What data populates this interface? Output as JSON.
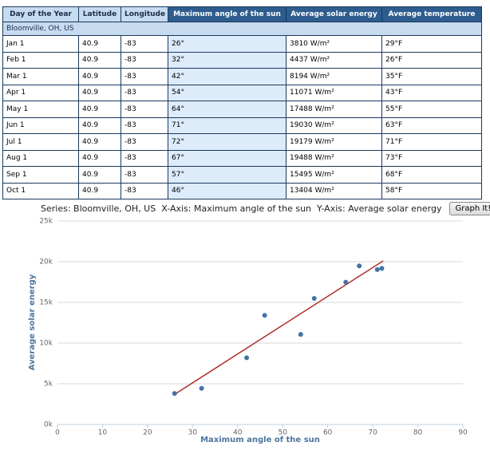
{
  "table": {
    "columns": [
      "Day of the Year",
      "Latitude",
      "Longitude",
      "Maximum angle of the sun",
      "Average solar energy",
      "Average temperature"
    ],
    "group": "Bloomville, OH, US",
    "rows": [
      [
        "Jan 1",
        "40.9",
        "-83",
        "26°",
        "3810 W/m²",
        "29°F"
      ],
      [
        "Feb 1",
        "40.9",
        "-83",
        "32°",
        "4437 W/m²",
        "26°F"
      ],
      [
        "Mar 1",
        "40.9",
        "-83",
        "42°",
        "8194 W/m²",
        "35°F"
      ],
      [
        "Apr 1",
        "40.9",
        "-83",
        "54°",
        "11071 W/m²",
        "43°F"
      ],
      [
        "May 1",
        "40.9",
        "-83",
        "64°",
        "17488 W/m²",
        "55°F"
      ],
      [
        "Jun 1",
        "40.9",
        "-83",
        "71°",
        "19030 W/m²",
        "63°F"
      ],
      [
        "Jul 1",
        "40.9",
        "-83",
        "72°",
        "19179 W/m²",
        "71°F"
      ],
      [
        "Aug 1",
        "40.9",
        "-83",
        "67°",
        "19488 W/m²",
        "73°F"
      ],
      [
        "Sep 1",
        "40.9",
        "-83",
        "57°",
        "15495 W/m²",
        "68°F"
      ],
      [
        "Oct 1",
        "40.9",
        "-83",
        "46°",
        "13404 W/m²",
        "58°F"
      ]
    ]
  },
  "controls": {
    "series_label": "Series:",
    "series": "Bloomville, OH, US",
    "x_label": "X-Axis:",
    "x_axis": "Maximum angle of the sun",
    "y_label": "Y-Axis:",
    "y_axis": "Average solar energy",
    "button": "Graph It!"
  },
  "chart_data": {
    "type": "scatter",
    "x_label": "Maximum angle of the sun",
    "y_label": "Average solar energy",
    "x": [
      26,
      32,
      42,
      54,
      64,
      71,
      72,
      67,
      57,
      46
    ],
    "values": [
      3810,
      4437,
      8194,
      11071,
      17488,
      19030,
      19179,
      19488,
      15495,
      13404
    ],
    "color": "#4572a7",
    "trendline": {
      "x": [
        26,
        72.3
      ],
      "values": [
        3700,
        20100
      ],
      "color": "#b03030"
    },
    "xlim": [
      0,
      90
    ],
    "xticks": [
      0,
      10,
      20,
      30,
      40,
      50,
      60,
      70,
      80,
      90
    ],
    "ylim": [
      0,
      25000
    ],
    "yticks": [
      {
        "value": 0,
        "label": "0k"
      },
      {
        "value": 5000,
        "label": "5k"
      },
      {
        "value": 10000,
        "label": "10k"
      },
      {
        "value": 15000,
        "label": "15k"
      },
      {
        "value": 20000,
        "label": "20k"
      },
      {
        "value": 25000,
        "label": "25k"
      }
    ],
    "grid": true
  }
}
